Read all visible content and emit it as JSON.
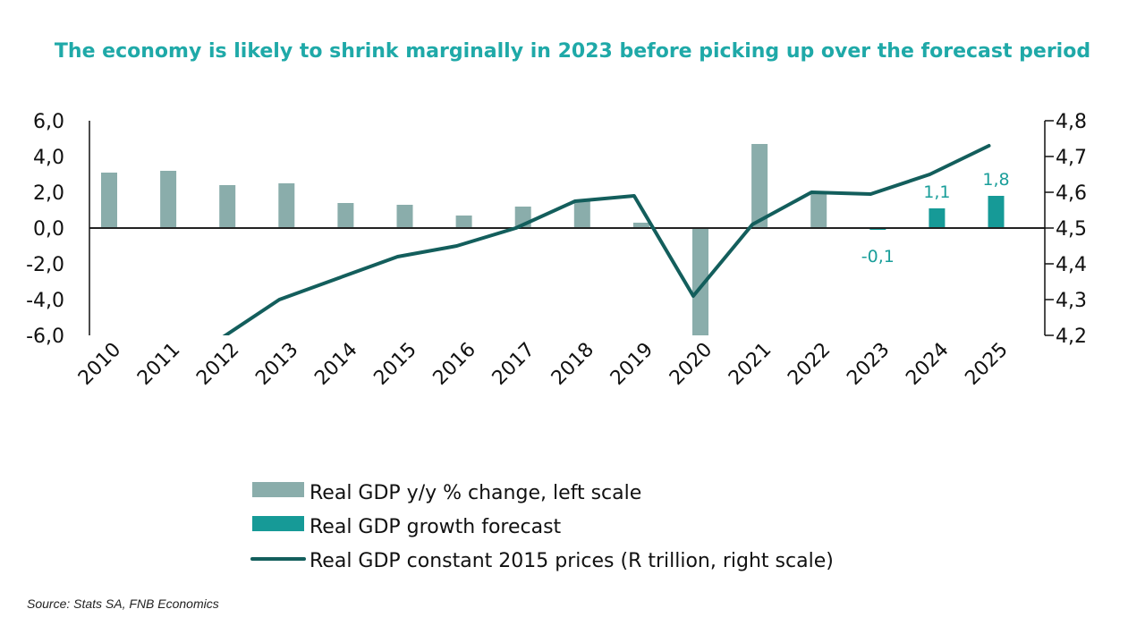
{
  "chart_data": {
    "type": "bar",
    "title": "The economy is likely to shrink marginally in 2023 before picking up over the forecast period",
    "source": "Source: Stats SA, FNB Economics",
    "categories": [
      "2010",
      "2011",
      "2012",
      "2013",
      "2014",
      "2015",
      "2016",
      "2017",
      "2018",
      "2019",
      "2020",
      "2021",
      "2022",
      "2023",
      "2024",
      "2025"
    ],
    "left_axis": {
      "range": [
        -6,
        6
      ],
      "ticks": [
        "6,0",
        "4,0",
        "2,0",
        "0,0",
        "-2,0",
        "-4,0",
        "-6,0"
      ],
      "tick_values": [
        6,
        4,
        2,
        0,
        -2,
        -4,
        -6
      ]
    },
    "right_axis": {
      "range": [
        4.2,
        4.8
      ],
      "ticks": [
        "4,8",
        "4,7",
        "4,6",
        "4,5",
        "4,4",
        "4,3",
        "4,2"
      ],
      "tick_values": [
        4.8,
        4.7,
        4.6,
        4.5,
        4.4,
        4.3,
        4.2
      ]
    },
    "grid": false,
    "legend_placement": "bottom",
    "series": [
      {
        "name": "Real GDP y/y % change, left scale",
        "type": "bar",
        "axis": "left",
        "color": "#8aadab",
        "values": [
          3.1,
          3.2,
          2.4,
          2.5,
          1.4,
          1.3,
          0.7,
          1.2,
          1.5,
          0.3,
          -6.3,
          4.7,
          1.9,
          null,
          null,
          null
        ]
      },
      {
        "name": "Real GDP growth forecast",
        "type": "bar",
        "axis": "left",
        "color": "#169a97",
        "values": [
          null,
          null,
          null,
          null,
          null,
          null,
          null,
          null,
          null,
          null,
          null,
          null,
          null,
          -0.1,
          1.1,
          1.8
        ],
        "labels": [
          null,
          null,
          null,
          null,
          null,
          null,
          null,
          null,
          null,
          null,
          null,
          null,
          null,
          "-0,1",
          "1,1",
          "1,8"
        ]
      },
      {
        "name": "Real GDP constant 2015 prices (R trillion, right scale)",
        "type": "line",
        "axis": "right",
        "color": "#135e5c",
        "values": [
          null,
          null,
          4.19,
          4.3,
          4.36,
          4.42,
          4.45,
          4.5,
          4.575,
          4.59,
          4.31,
          4.51,
          4.6,
          4.595,
          4.65,
          4.73
        ]
      }
    ]
  }
}
